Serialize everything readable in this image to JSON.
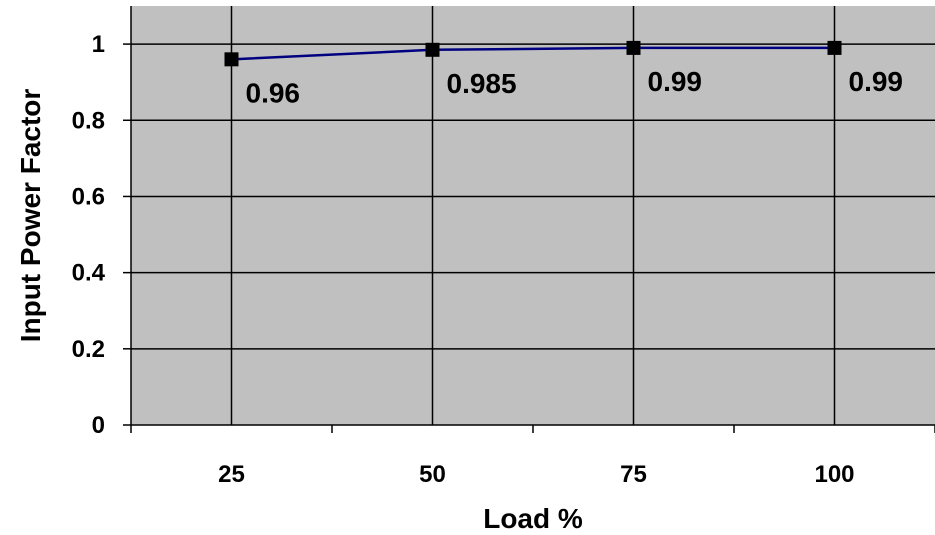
{
  "chart_data": {
    "type": "line",
    "title": "",
    "xlabel": "Load %",
    "ylabel": "Input Power Factor",
    "categories": [
      "25",
      "50",
      "75",
      "100"
    ],
    "series": [
      {
        "values": [
          0.96,
          0.985,
          0.99,
          0.99
        ],
        "data_labels": [
          "0.96",
          "0.985",
          "0.99",
          "0.99"
        ]
      }
    ],
    "ylim": [
      0,
      1.1
    ],
    "yticks": [
      0,
      0.2,
      0.4,
      0.6,
      0.8,
      1
    ],
    "ytick_labels": [
      "0",
      "0.2",
      "0.4",
      "0.6",
      "0.8",
      "1"
    ],
    "grid": true,
    "legend": "none",
    "colors": {
      "plot_background": "#c0c0c0",
      "line": "#000080",
      "marker": "#000000",
      "grid": "#000000"
    }
  }
}
